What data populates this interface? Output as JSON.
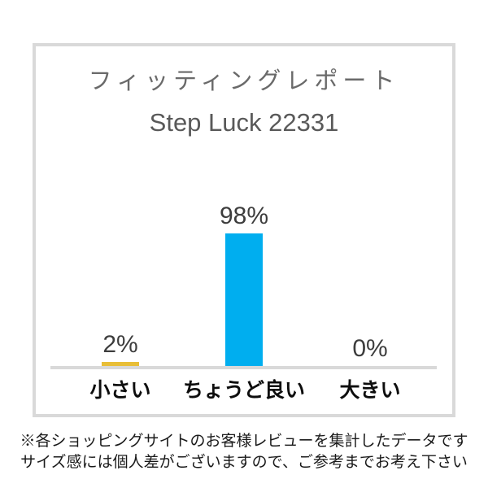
{
  "chart_data": {
    "type": "bar",
    "title": "フィッティングレポート",
    "subtitle": "Step Luck 22331",
    "categories": [
      "小さい",
      "ちょうど良い",
      "大きい"
    ],
    "values": [
      2,
      98,
      0
    ],
    "value_labels": [
      "2%",
      "98%",
      "0%"
    ],
    "bar_colors": [
      "#e8be37",
      "#00aeef",
      "#00aeef"
    ],
    "ylim": [
      0,
      100
    ],
    "xlabel": "",
    "ylabel": "",
    "grid": false,
    "legend": false
  },
  "footnote": {
    "line1": "※各ショッピングサイトのお客様レビューを集計したデータです",
    "line2": "サイズ感には個人差がございますので、ご参考までお考え下さい"
  },
  "colors": {
    "bar_small": "#e8be37",
    "bar_just_right": "#00aeef",
    "axis_line": "#d9d9d9",
    "panel_border": "#d9d9d9",
    "title_text": "#6a6a6a",
    "subtitle_text": "#595959",
    "value_label_text": "#3d3d3d",
    "category_label_text": "#0d0d0d",
    "footnote_text": "#1a1a1a"
  }
}
